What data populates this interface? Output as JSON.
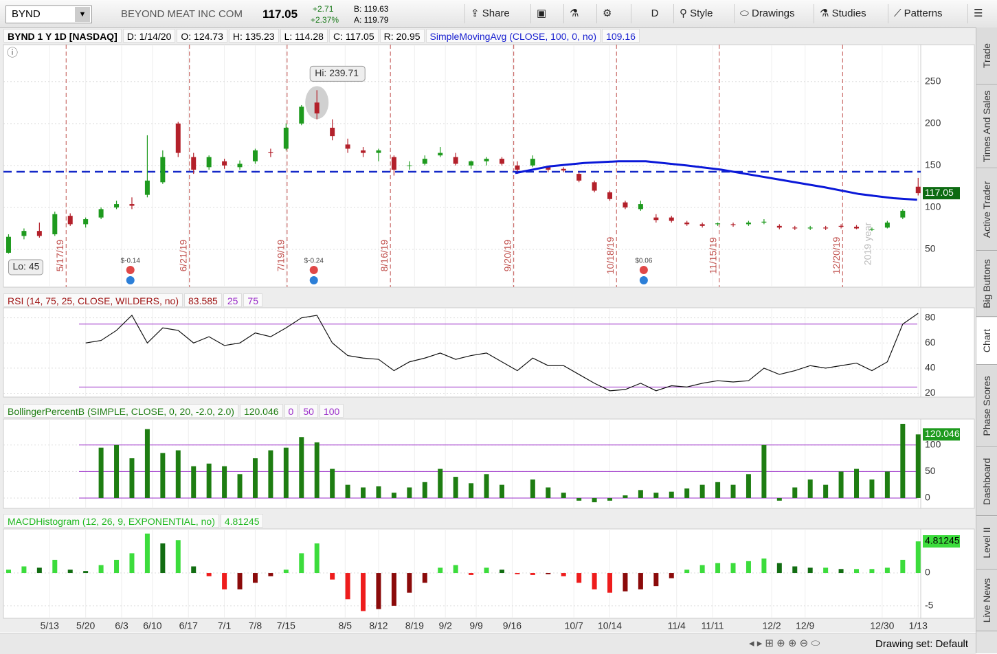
{
  "toolbar": {
    "symbol": "BYND",
    "company": "BEYOND MEAT INC COM",
    "last": "117.05",
    "change": "+2.71",
    "change_pct": "+2.37%",
    "bid": "B: 119.63",
    "ask": "A: 119.79",
    "buttons": [
      "Share",
      "D",
      "Style",
      "Drawings",
      "Studies",
      "Patterns"
    ]
  },
  "header": {
    "title": "BYND 1 Y 1D [NASDAQ]",
    "date": "D: 1/14/20",
    "open": "O: 124.73",
    "high": "H: 135.23",
    "low": "L: 114.28",
    "close": "C: 117.05",
    "range": "R: 20.95",
    "study": "SimpleMovingAvg (CLOSE, 100, 0, no)",
    "study_value": "109.16"
  },
  "chart_data": [
    {
      "type": "candlestick",
      "up_color": "#1e9a1e",
      "down_color": "#b3202a",
      "grid": true,
      "badge_color": "#0d6b12",
      "badge_text": "#fff",
      "xlim": [
        -1,
        177.5
      ],
      "ylim": [
        5,
        294
      ],
      "yticks": [
        50,
        100,
        150,
        200,
        250
      ],
      "x": [
        0,
        3,
        6,
        9,
        12,
        15,
        18,
        21,
        24,
        27,
        30,
        33,
        36,
        39,
        42,
        45,
        48,
        51,
        54,
        57,
        60,
        63,
        66,
        69,
        72,
        75,
        78,
        81,
        84,
        87,
        90,
        93,
        96,
        99,
        102,
        105,
        108,
        111,
        114,
        117,
        120,
        123,
        126,
        129,
        132,
        135,
        138,
        141,
        144,
        147,
        150,
        153,
        156,
        159,
        162,
        165,
        168,
        171,
        174,
        177
      ],
      "open": [
        46,
        66,
        72,
        68,
        90,
        80,
        88,
        100,
        104,
        115,
        130,
        200,
        160,
        148,
        155,
        148,
        155,
        166,
        170,
        200,
        225,
        195,
        175,
        168,
        165,
        160,
        150,
        152,
        162,
        160,
        150,
        155,
        158,
        150,
        150,
        148,
        146,
        140,
        130,
        118,
        106,
        98,
        88,
        88,
        82,
        80,
        80,
        80,
        80,
        82,
        78,
        76,
        75,
        76,
        78,
        77,
        74,
        76,
        88,
        124.73
      ],
      "high": [
        68,
        75,
        82,
        95,
        93,
        88,
        100,
        108,
        112,
        186,
        168,
        202,
        165,
        162,
        158,
        156,
        170,
        170,
        200,
        222,
        239.71,
        205,
        182,
        172,
        170,
        162,
        155,
        162,
        172,
        165,
        156,
        160,
        160,
        155,
        162,
        150,
        148,
        142,
        132,
        120,
        108,
        108,
        92,
        90,
        84,
        82,
        82,
        82,
        84,
        86,
        80,
        78,
        78,
        78,
        80,
        79,
        76,
        84,
        98,
        135.23
      ],
      "low": [
        45,
        62,
        64,
        66,
        78,
        76,
        86,
        98,
        98,
        112,
        128,
        160,
        140,
        145,
        146,
        145,
        152,
        160,
        168,
        198,
        205,
        180,
        165,
        160,
        155,
        138,
        145,
        150,
        160,
        150,
        146,
        150,
        150,
        140,
        148,
        142,
        142,
        130,
        118,
        108,
        98,
        96,
        82,
        82,
        78,
        76,
        78,
        77,
        78,
        80,
        74,
        73,
        73,
        73,
        75,
        74,
        72,
        75,
        86,
        114.28
      ],
      "close": [
        65,
        72,
        66,
        92,
        80,
        86,
        98,
        104,
        102,
        132,
        160,
        165,
        145,
        160,
        150,
        152,
        168,
        165,
        195,
        220,
        212,
        185,
        170,
        165,
        168,
        145,
        150,
        158,
        165,
        152,
        155,
        158,
        152,
        145,
        158,
        145,
        144,
        132,
        120,
        110,
        100,
        104,
        85,
        84,
        80,
        78,
        81,
        79,
        82,
        83,
        76,
        75,
        76,
        75,
        77,
        75,
        74,
        82,
        96,
        117.05
      ],
      "hline": 142.5,
      "hline_color": "#1428c8",
      "sma": {
        "color": "#0a18d8",
        "x": [
          98.6,
          105.3,
          112,
          118.7,
          124,
          132,
          138.7,
          145.4,
          152.1,
          158.8,
          165.5,
          172.2,
          176.8
        ],
        "values": [
          141,
          149,
          153,
          155,
          155,
          150,
          145,
          138,
          131,
          124,
          116,
          111,
          109.16
        ]
      },
      "high_label": {
        "x": 60,
        "value": 239.71,
        "label": "Hi: 239.71"
      },
      "low_label": {
        "x": 0,
        "value": 45,
        "label": "Lo: 45"
      },
      "events": [
        {
          "x": 11.2,
          "label": "5/17/19"
        },
        {
          "x": 35.2,
          "label": "6/21/19"
        },
        {
          "x": 54.2,
          "label": "7/19/19"
        },
        {
          "x": 74.3,
          "label": "8/16/19"
        },
        {
          "x": 98.3,
          "label": "9/20/19"
        },
        {
          "x": 118.3,
          "label": "10/18/19"
        },
        {
          "x": 138.3,
          "label": "11/15/19"
        },
        {
          "x": 162.3,
          "label": "12/20/19"
        }
      ],
      "earnings": [
        {
          "x": 23.7,
          "label": "$-0.14"
        },
        {
          "x": 59.4,
          "label": "$-0.24"
        },
        {
          "x": 123.6,
          "label": "$0.06"
        }
      ],
      "year_marker": {
        "x": 168.1,
        "label": "2019 year"
      }
    },
    {
      "type": "line",
      "title": "RSI (14, 75, 25, CLOSE, WILDERS, no)",
      "color": "#111",
      "grid": true,
      "ylim": [
        17,
        88
      ],
      "yticks": [
        20,
        40,
        60,
        80
      ],
      "levels": [
        25,
        75
      ],
      "level_color": "#9a2cc8",
      "values": [
        null,
        null,
        null,
        null,
        null,
        60,
        62,
        70,
        82,
        60,
        72,
        70,
        60,
        65,
        58,
        60,
        68,
        65,
        72,
        80,
        82,
        60,
        50,
        48,
        47,
        38,
        45,
        48,
        52,
        47,
        50,
        52,
        45,
        38,
        48,
        42,
        42,
        35,
        28,
        22,
        23,
        28,
        22,
        26,
        25,
        28,
        30,
        29,
        30,
        40,
        35,
        38,
        42,
        40,
        42,
        44,
        38,
        45,
        75,
        83.585
      ]
    },
    {
      "type": "bar",
      "title": "BollingerPercentB (SIMPLE, CLOSE, 0, 20, -2.0, 2.0)",
      "color": "#1e7d12",
      "grid": true,
      "ylim": [
        -19.5,
        149
      ],
      "yticks": [
        0,
        50,
        100
      ],
      "levels": [
        0,
        50,
        100
      ],
      "level_color": "#9a2cc8",
      "badge_color": "#1e9a1e",
      "badge_text": "#fff",
      "values": [
        null,
        null,
        null,
        null,
        null,
        null,
        95,
        100,
        75,
        130,
        85,
        90,
        60,
        65,
        60,
        45,
        75,
        90,
        95,
        115,
        105,
        55,
        25,
        20,
        22,
        10,
        20,
        30,
        55,
        40,
        28,
        45,
        25,
        0,
        35,
        20,
        10,
        -5,
        -8,
        -5,
        5,
        15,
        10,
        12,
        18,
        25,
        30,
        25,
        45,
        100,
        -5,
        20,
        35,
        25,
        50,
        55,
        35,
        50,
        140,
        120.046
      ]
    },
    {
      "type": "histogram",
      "title": "MACDHistogram (12, 26, 9, EXPONENTIAL, no)",
      "grid": true,
      "ylim": [
        -6.9,
        6.7
      ],
      "yticks": [
        0,
        -5
      ],
      "colors": {
        "pos_up": "#3cdc3c",
        "pos_down": "#126d12",
        "neg_down": "#ee1c1c",
        "neg_up": "#8b0a0a"
      },
      "badge_color": "#3cdc3c",
      "badge_text": "#000",
      "values": [
        0.5,
        1,
        0.8,
        2,
        0.5,
        0.3,
        1.2,
        2,
        3,
        6,
        4.5,
        5,
        1,
        -0.5,
        -2.5,
        -2.5,
        -1.5,
        -0.5,
        0.5,
        3,
        4.5,
        -1,
        -4,
        -5.8,
        -5.5,
        -5,
        -3,
        -1.5,
        0.8,
        1.2,
        -0.3,
        0.8,
        0.5,
        -0.2,
        -0.3,
        -0.2,
        -0.5,
        -1.5,
        -2.5,
        -3,
        -2.8,
        -2.5,
        -2,
        -0.8,
        0.5,
        1.2,
        1.5,
        1.5,
        1.8,
        2.2,
        1.5,
        1,
        0.8,
        0.8,
        0.6,
        0.6,
        0.6,
        0.8,
        2,
        4.81245
      ],
      "xticks": [
        {
          "value": 8,
          "label": "5/13"
        },
        {
          "value": 15,
          "label": "5/20"
        },
        {
          "value": 22,
          "label": "6/3"
        },
        {
          "value": 28,
          "label": "6/10"
        },
        {
          "value": 35,
          "label": "6/17"
        },
        {
          "value": 42,
          "label": "7/1"
        },
        {
          "value": 48,
          "label": "7/8"
        },
        {
          "value": 54,
          "label": "7/15"
        },
        {
          "value": 65.5,
          "label": "8/5"
        },
        {
          "value": 72,
          "label": "8/12"
        },
        {
          "value": 79,
          "label": "8/19"
        },
        {
          "value": 85,
          "label": "9/2"
        },
        {
          "value": 91,
          "label": "9/9"
        },
        {
          "value": 98,
          "label": "9/16"
        },
        {
          "value": 110,
          "label": "10/7"
        },
        {
          "value": 117,
          "label": "10/14"
        },
        {
          "value": 130,
          "label": "11/4"
        },
        {
          "value": 137,
          "label": "11/11"
        },
        {
          "value": 148.5,
          "label": "12/2"
        },
        {
          "value": 155,
          "label": "12/9"
        },
        {
          "value": 170,
          "label": "12/30"
        },
        {
          "value": 177,
          "label": "1/13"
        }
      ]
    }
  ],
  "sidebar": {
    "tabs": [
      "Trade",
      "Times And Sales",
      "Active Trader",
      "Big Buttons",
      "Chart",
      "Phase Scores",
      "Dashboard",
      "Level II",
      "Live News"
    ],
    "selected": "Chart"
  },
  "footer": "Drawing set: Default"
}
